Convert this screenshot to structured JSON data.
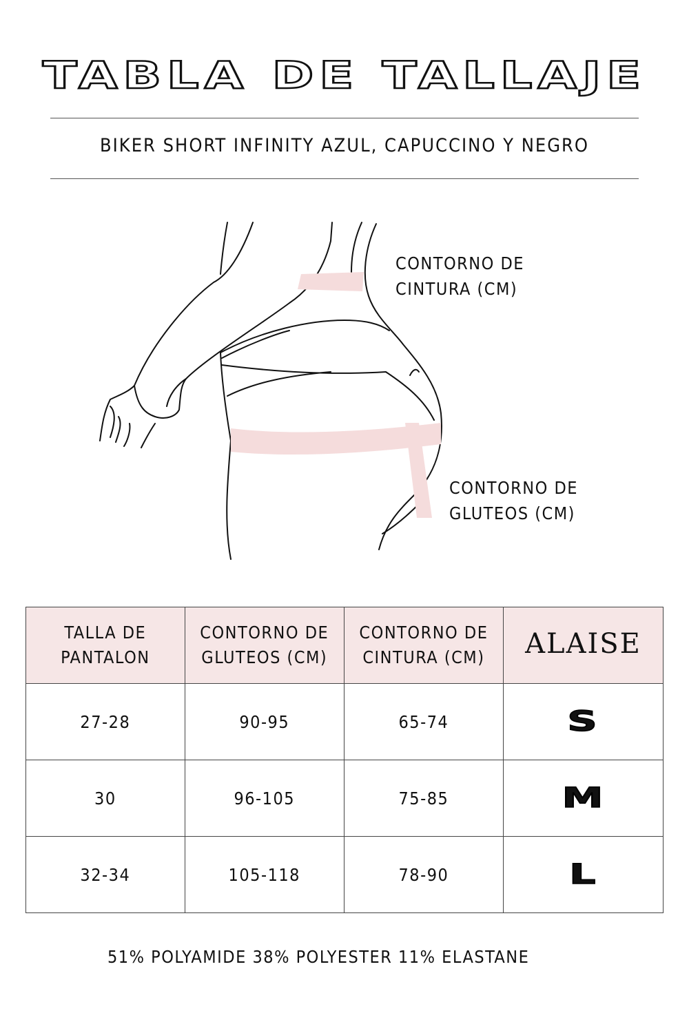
{
  "header": {
    "title": "TABLA DE TALLAJE",
    "subtitle": "BIKER SHORT INFINITY AZUL, CAPUCCINO Y NEGRO"
  },
  "illustration": {
    "waist_label_1": "CONTORNO DE",
    "waist_label_2": "CINTURA (CM)",
    "hip_label_1": "CONTORNO DE",
    "hip_label_2": "GLUTEOS (CM)",
    "band_color": "#f5dcdc"
  },
  "table": {
    "header_bg": "#f6e6e6",
    "headers": [
      {
        "line1": "TALLA DE",
        "line2": "PANTALON"
      },
      {
        "line1": "CONTORNO DE",
        "line2": "GLUTEOS (CM)"
      },
      {
        "line1": "CONTORNO DE",
        "line2": "CINTURA (CM)"
      }
    ],
    "brand_logo": "ALAISE",
    "rows": [
      {
        "pant": "27-28",
        "hip": "90-95",
        "waist": "65-74",
        "size": "S"
      },
      {
        "pant": "30",
        "hip": "96-105",
        "waist": "75-85",
        "size": "M"
      },
      {
        "pant": "32-34",
        "hip": "105-118",
        "waist": "78-90",
        "size": "L"
      }
    ]
  },
  "composition": "51% POLYAMIDE 38% POLYESTER 11% ELASTANE"
}
